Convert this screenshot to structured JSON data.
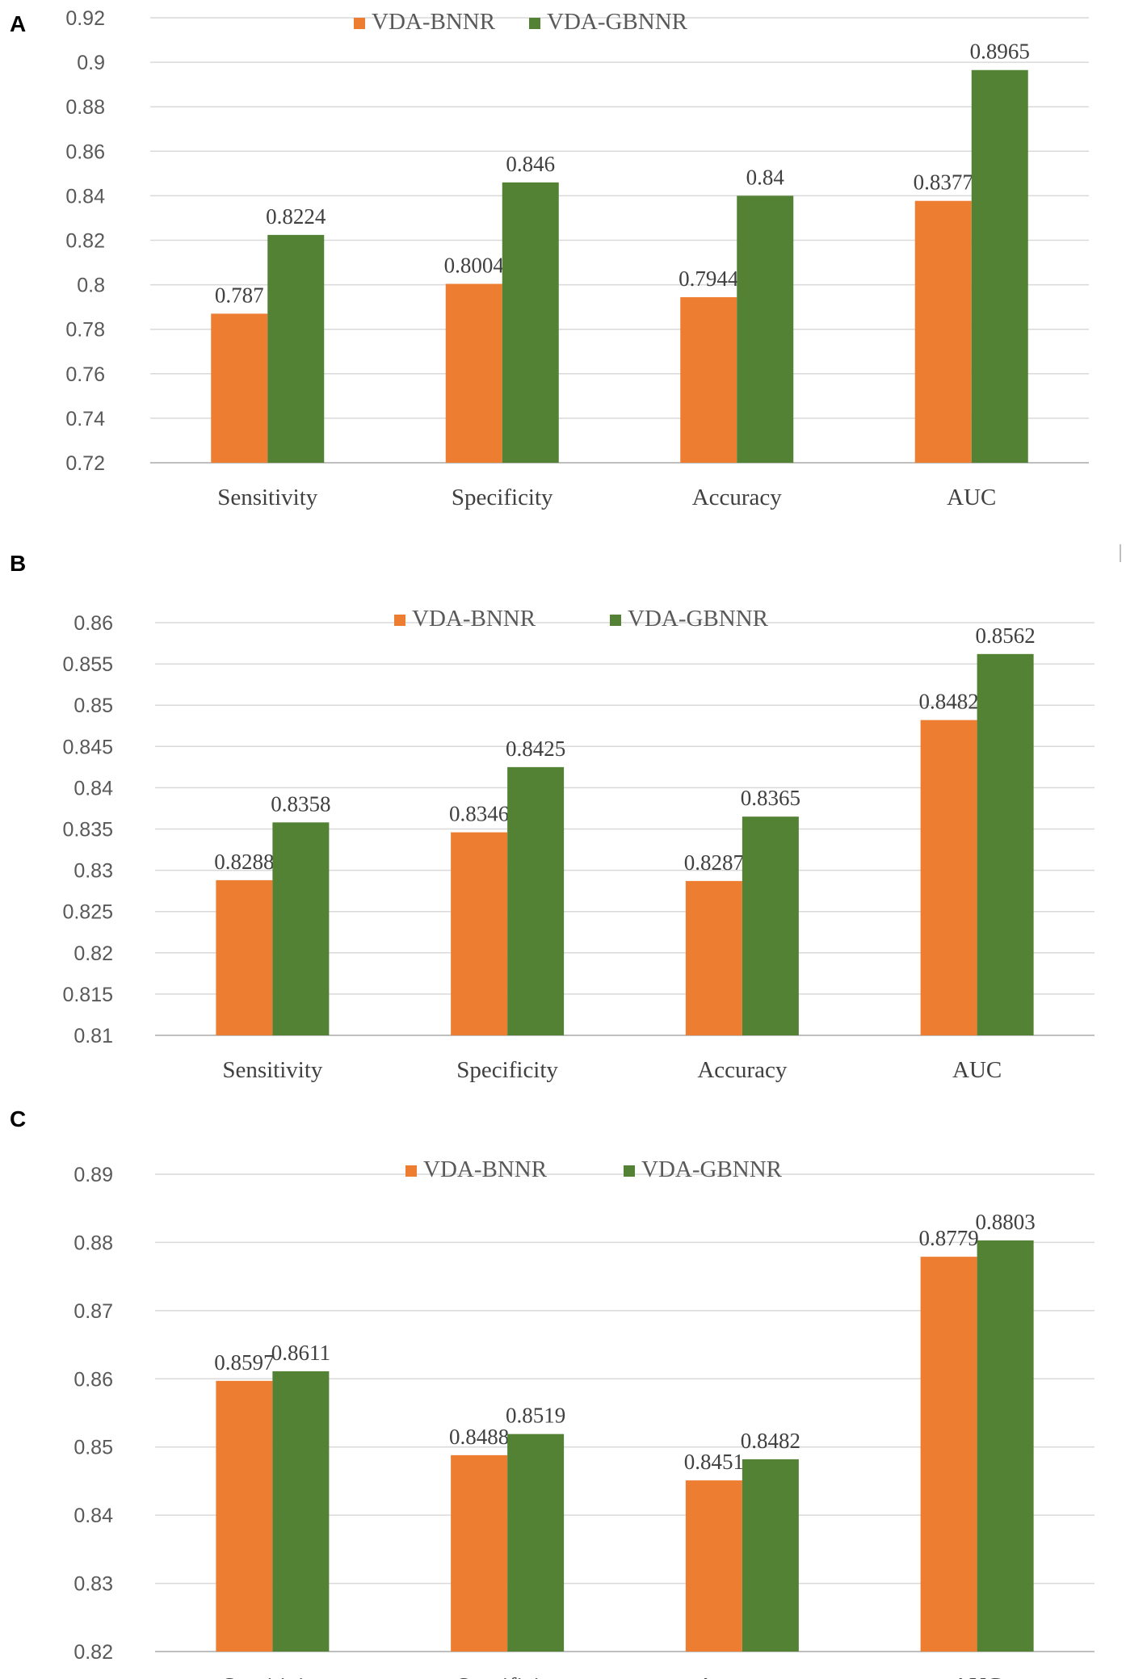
{
  "colors": {
    "bnnr": "#ED7D31",
    "gbnnr": "#548235",
    "grid": "#d9d9d9",
    "axis": "#bfbfbf"
  },
  "chart_data": [
    {
      "panel": "A",
      "type": "bar",
      "categories": [
        "Sensitivity",
        "Specificity",
        "Accuracy",
        "AUC"
      ],
      "series": [
        {
          "name": "VDA-BNNR",
          "values": [
            0.787,
            0.8004,
            0.7944,
            0.8377
          ],
          "labels": [
            "0.787",
            "0.8004",
            "0.7944",
            "0.8377"
          ]
        },
        {
          "name": "VDA-GBNNR",
          "values": [
            0.8224,
            0.846,
            0.84,
            0.8965
          ],
          "labels": [
            "0.8224",
            "0.846",
            "0.84",
            "0.8965"
          ]
        }
      ],
      "ylim": [
        0.72,
        0.92
      ],
      "yticks": [
        "0.72",
        "0.74",
        "0.76",
        "0.78",
        "0.8",
        "0.82",
        "0.84",
        "0.86",
        "0.88",
        "0.9",
        "0.92"
      ],
      "legend": "top-center"
    },
    {
      "panel": "B",
      "type": "bar",
      "categories": [
        "Sensitivity",
        "Specificity",
        "Accuracy",
        "AUC"
      ],
      "series": [
        {
          "name": "VDA-BNNR",
          "values": [
            0.8288,
            0.8346,
            0.8287,
            0.8482
          ],
          "labels": [
            "0.8288",
            "0.8346",
            "0.8287",
            "0.8482"
          ]
        },
        {
          "name": "VDA-GBNNR",
          "values": [
            0.8358,
            0.8425,
            0.8365,
            0.8562
          ],
          "labels": [
            "0.8358",
            "0.8425",
            "0.8365",
            "0.8562"
          ]
        }
      ],
      "ylim": [
        0.81,
        0.86
      ],
      "yticks": [
        "0.81",
        "0.815",
        "0.82",
        "0.825",
        "0.83",
        "0.835",
        "0.84",
        "0.845",
        "0.85",
        "0.855",
        "0.86"
      ],
      "legend": "top-center"
    },
    {
      "panel": "C",
      "type": "bar",
      "categories": [
        "Sensitivity",
        "Specificity",
        "Accuracy",
        "AUC"
      ],
      "series": [
        {
          "name": "VDA-BNNR",
          "values": [
            0.8597,
            0.8488,
            0.8451,
            0.8779
          ],
          "labels": [
            "0.8597",
            "0.8488",
            "0.8451",
            "0.8779"
          ]
        },
        {
          "name": "VDA-GBNNR",
          "values": [
            0.8611,
            0.8519,
            0.8482,
            0.8803
          ],
          "labels": [
            "0.8611",
            "0.8519",
            "0.8482",
            "0.8803"
          ]
        }
      ],
      "ylim": [
        0.82,
        0.89
      ],
      "yticks": [
        "0.82",
        "0.83",
        "0.84",
        "0.85",
        "0.86",
        "0.87",
        "0.88",
        "0.89"
      ],
      "legend": "top-center"
    }
  ]
}
